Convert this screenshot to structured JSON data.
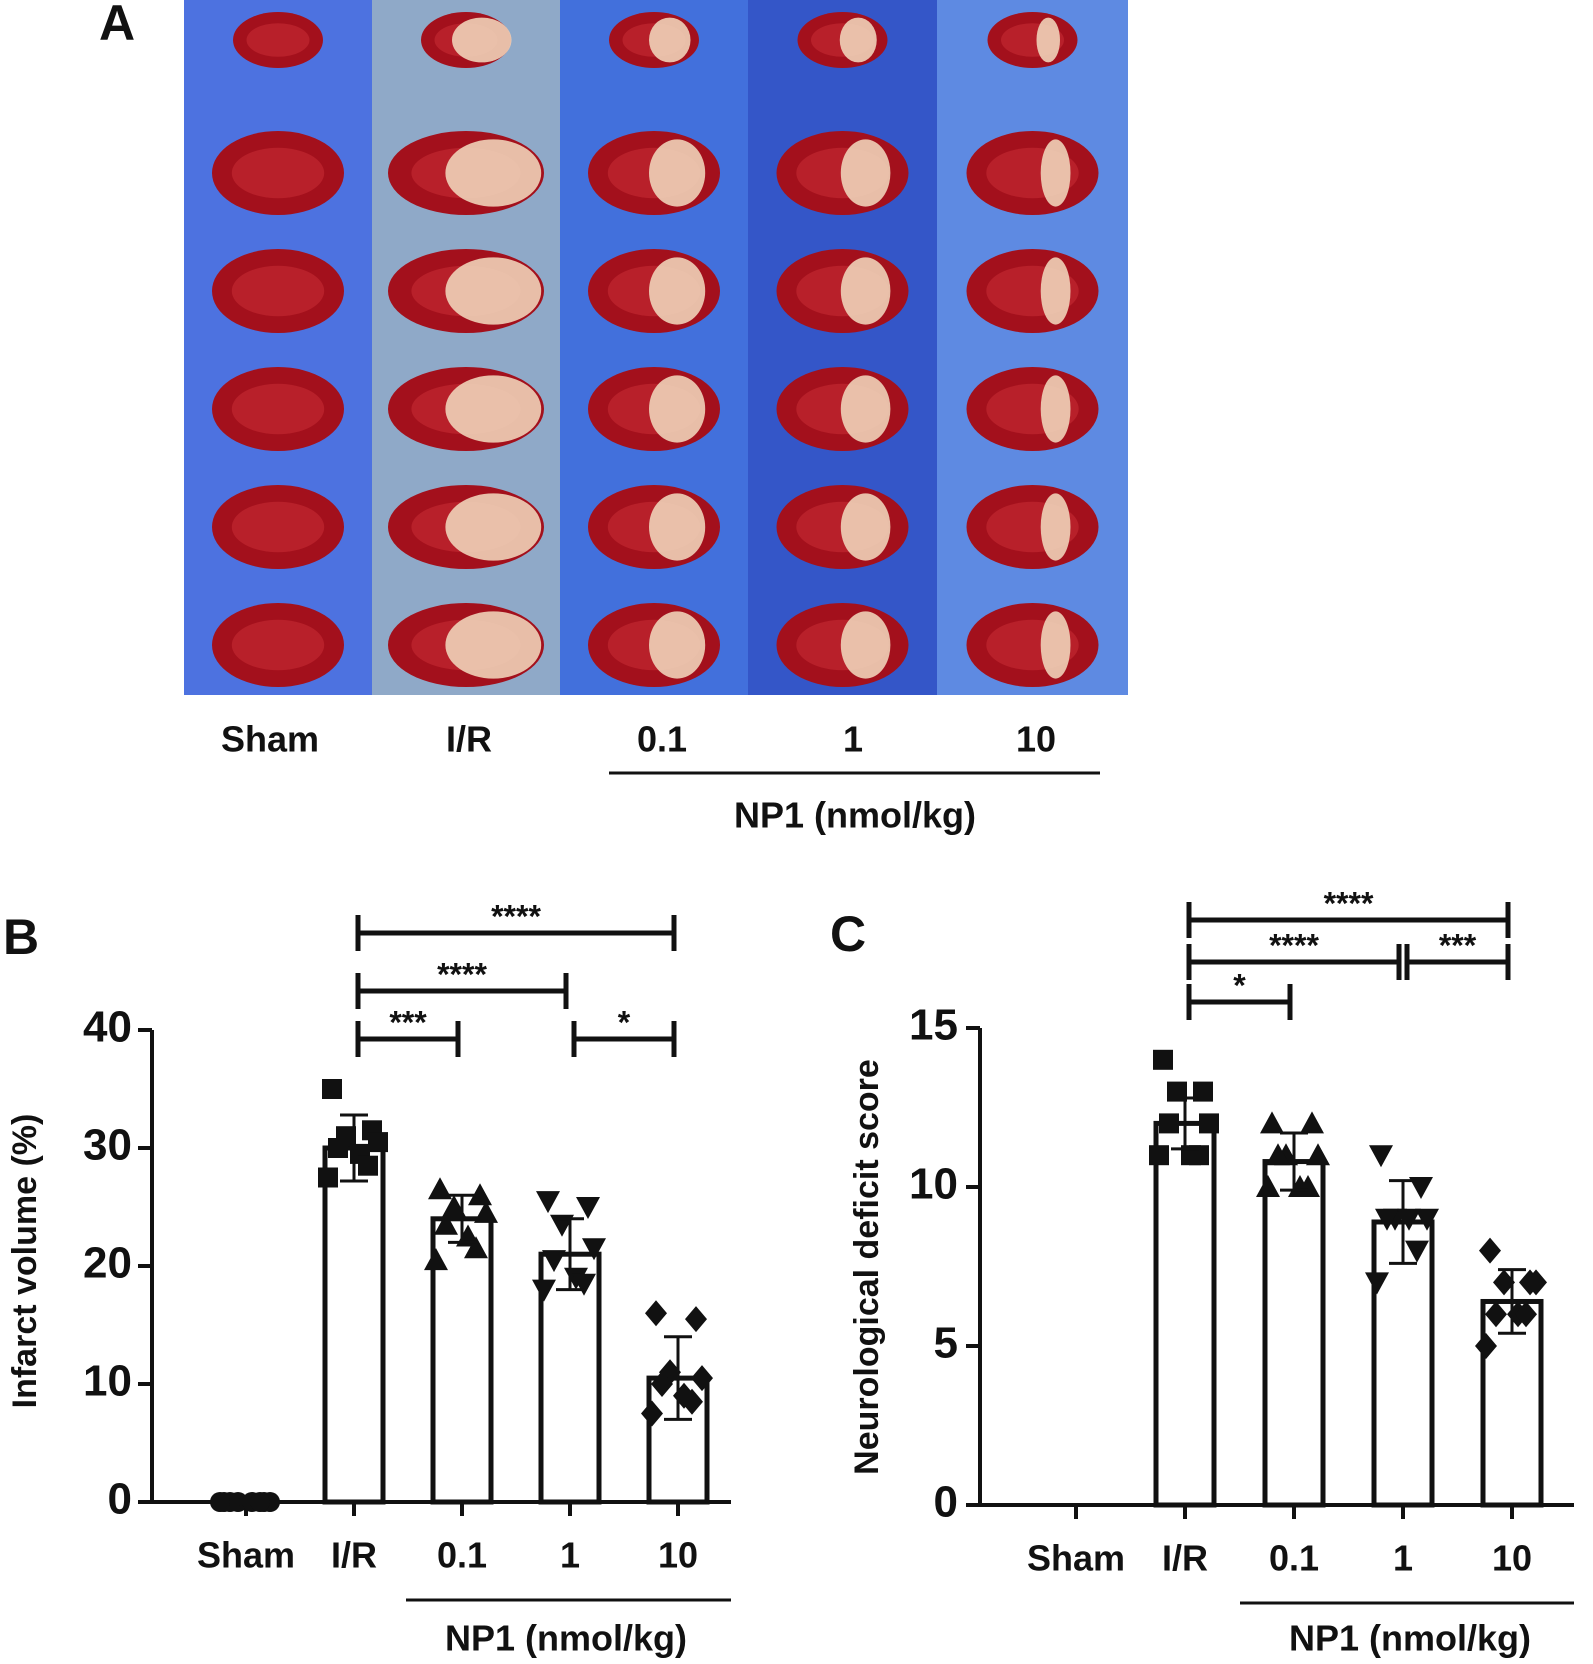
{
  "panel_a": {
    "label": "A",
    "groups": [
      "Sham",
      "I/R",
      "0.1",
      "1",
      "10"
    ],
    "group_title": "NP1 (nmol/kg)"
  },
  "chart_data": [
    {
      "type": "bar",
      "panel": "B",
      "ylabel": "Infarct volume (%)",
      "categories": [
        "Sham",
        "I/R",
        "0.1",
        "1",
        "10"
      ],
      "group_title": "NP1 (nmol/kg)",
      "values": [
        0,
        30,
        24,
        21,
        10.5
      ],
      "errors": [
        0,
        2.8,
        2,
        3,
        3.5
      ],
      "points": [
        [
          0,
          0,
          0,
          0,
          0,
          0,
          0,
          0
        ],
        [
          35,
          31.5,
          31,
          30.5,
          30,
          29.5,
          28.5,
          27.5
        ],
        [
          26.5,
          26,
          25,
          24.5,
          23.5,
          22.5,
          21.5,
          20.5
        ],
        [
          25.5,
          25,
          23.5,
          21.5,
          20.5,
          19,
          18.5,
          18
        ],
        [
          16,
          15.5,
          11,
          10.5,
          10,
          9,
          8.5,
          7.5
        ]
      ],
      "markers": [
        "circle",
        "square",
        "triangle-up",
        "triangle-down",
        "diamond"
      ],
      "ylim": [
        0,
        40
      ],
      "yticks": [
        0,
        10,
        20,
        30,
        40
      ],
      "color": "#ffffff",
      "comparisons": [
        {
          "from": 1,
          "to": 2,
          "label": "***"
        },
        {
          "from": 3,
          "to": 4,
          "label": "*"
        },
        {
          "from": 1,
          "to": 3,
          "label": "****"
        },
        {
          "from": 1,
          "to": 4,
          "label": "****"
        }
      ]
    },
    {
      "type": "bar",
      "panel": "C",
      "ylabel": "Neurological deficit score",
      "categories": [
        "Sham",
        "I/R",
        "0.1",
        "1",
        "10"
      ],
      "group_title": "NP1 (nmol/kg)",
      "values": [
        0,
        12,
        10.8,
        8.9,
        6.4
      ],
      "errors": [
        0,
        0.8,
        0.9,
        1.3,
        1
      ],
      "points": [
        [],
        [
          14,
          13,
          13,
          12,
          12,
          11,
          11,
          11
        ],
        [
          12,
          12,
          11,
          11,
          11,
          10,
          10,
          10
        ],
        [
          11,
          10,
          9,
          9,
          9,
          9,
          8,
          7
        ],
        [
          8,
          7,
          7,
          7,
          6,
          6,
          6,
          5
        ]
      ],
      "markers": [
        "circle",
        "square",
        "triangle-up",
        "triangle-down",
        "diamond"
      ],
      "ylim": [
        0,
        15
      ],
      "yticks": [
        0,
        5,
        10,
        15
      ],
      "color": "#ffffff",
      "comparisons": [
        {
          "from": 1,
          "to": 2,
          "label": "*"
        },
        {
          "from": 1,
          "to": 3,
          "label": "****"
        },
        {
          "from": 3,
          "to": 4,
          "label": "***"
        },
        {
          "from": 1,
          "to": 4,
          "label": "****"
        }
      ]
    }
  ]
}
